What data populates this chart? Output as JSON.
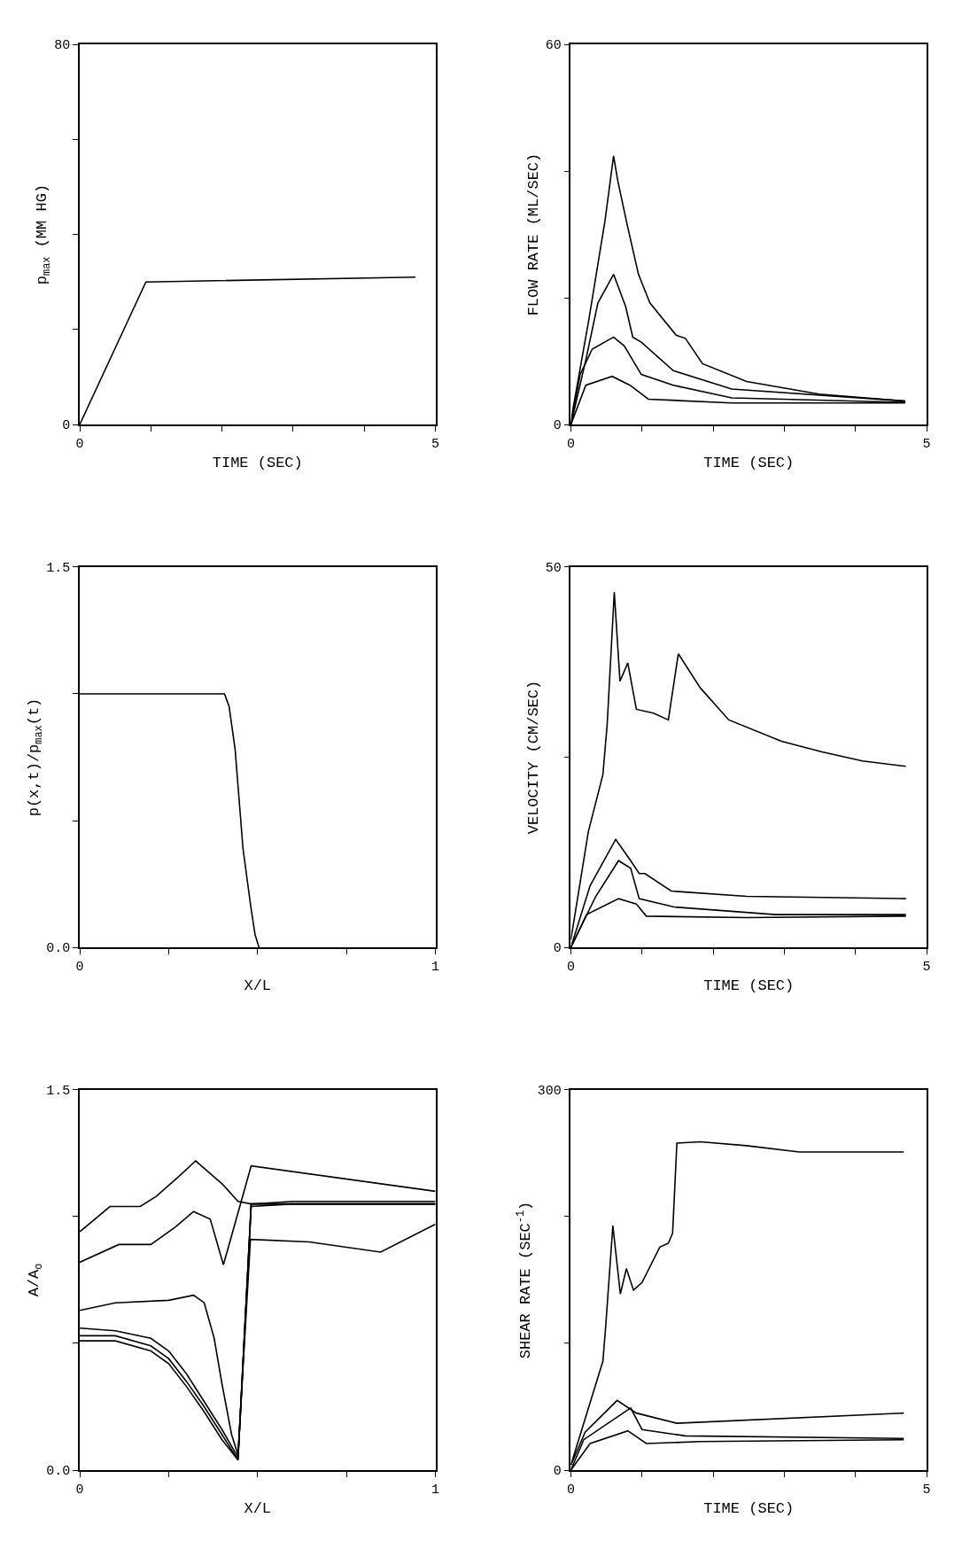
{
  "chart_data": [
    {
      "type": "line",
      "xlabel": "TIME (SEC)",
      "ylabel": "p$_{max}$ (MM HG)",
      "xlim": [
        0,
        5
      ],
      "ylim": [
        0,
        80
      ],
      "xticks": [
        0,
        {
          "value": 1,
          "label": null
        },
        {
          "value": 2,
          "label": null
        },
        {
          "value": 3,
          "label": null
        },
        {
          "value": 4,
          "label": null
        },
        5
      ],
      "yticks": [
        0,
        {
          "value": 20,
          "label": null
        },
        {
          "value": 40,
          "label": null
        },
        {
          "value": 60,
          "label": null
        },
        80
      ],
      "marker": "none",
      "line_style": "solid",
      "series": [
        {
          "color": "#000000",
          "x": [
            0,
            0.93,
            4.72
          ],
          "values": [
            0,
            30,
            31
          ]
        }
      ]
    },
    {
      "type": "line",
      "xlabel": "TIME (SEC)",
      "ylabel": "FLOW RATE (ML/SEC)",
      "xlim": [
        0,
        5
      ],
      "ylim": [
        0,
        60
      ],
      "xticks": [
        0,
        {
          "value": 1,
          "label": null
        },
        {
          "value": 2,
          "label": null
        },
        {
          "value": 3,
          "label": null
        },
        {
          "value": 4,
          "label": null
        },
        5
      ],
      "yticks": [
        0,
        {
          "value": 20,
          "label": null
        },
        {
          "value": 40,
          "label": null
        },
        60
      ],
      "marker": "none",
      "line_style": "solid",
      "series": [
        {
          "color": "#000000",
          "x": [
            0,
            0.03,
            0.25,
            0.48,
            0.6,
            0.66,
            0.79,
            0.95,
            1.11,
            1.48,
            1.61,
            1.85,
            2.47,
            3.49,
            4.7
          ],
          "values": [
            0,
            2.5,
            16.4,
            32.2,
            42.4,
            38.4,
            31.6,
            23.7,
            19.2,
            14.1,
            13.6,
            9.6,
            6.8,
            4.8,
            3.7
          ]
        },
        {
          "color": "#000000",
          "x": [
            0,
            0.21,
            0.38,
            0.6,
            0.77,
            0.87,
            0.99,
            1.44,
            2.26,
            4.7
          ],
          "values": [
            0,
            10.2,
            19.2,
            23.7,
            18.6,
            13.8,
            13.0,
            8.5,
            5.6,
            3.7
          ]
        },
        {
          "color": "#000000",
          "x": [
            0,
            0.13,
            0.3,
            0.6,
            0.75,
            0.99,
            1.44,
            2.26,
            4.7
          ],
          "values": [
            0,
            7.9,
            11.9,
            13.8,
            12.4,
            7.9,
            6.2,
            4.2,
            3.5
          ]
        },
        {
          "color": "#000000",
          "x": [
            0,
            0.21,
            0.58,
            0.83,
            1.09,
            2.26,
            4.7
          ],
          "values": [
            0,
            6.2,
            7.6,
            6.2,
            4.0,
            3.4,
            3.4
          ]
        }
      ]
    },
    {
      "type": "line",
      "xlabel": "X/L",
      "ylabel": "p(x,t)/p$_{max}$(t)",
      "xlim": [
        0,
        1
      ],
      "ylim": [
        0,
        1.5
      ],
      "xticks": [
        0,
        {
          "value": 0.25,
          "label": null
        },
        {
          "value": 0.5,
          "label": null
        },
        {
          "value": 0.75,
          "label": null
        },
        1
      ],
      "yticks": [
        {
          "value": 0,
          "label": "0.0"
        },
        {
          "value": 0.5,
          "label": null
        },
        {
          "value": 1,
          "label": null
        },
        1.5
      ],
      "marker": "none",
      "line_style": "solid",
      "series": [
        {
          "color": "#000000",
          "x": [
            0,
            0.407,
            0.42,
            0.437,
            0.459,
            0.481,
            0.493,
            0.504
          ],
          "values": [
            1.0,
            1.0,
            0.95,
            0.78,
            0.39,
            0.16,
            0.05,
            0.0
          ]
        }
      ]
    },
    {
      "type": "line",
      "xlabel": "TIME (SEC)",
      "ylabel": "VELOCITY (CM/SEC)",
      "xlim": [
        0,
        5
      ],
      "ylim": [
        0,
        50
      ],
      "xticks": [
        0,
        {
          "value": 1,
          "label": null
        },
        {
          "value": 2,
          "label": null
        },
        {
          "value": 3,
          "label": null
        },
        {
          "value": 4,
          "label": null
        },
        5
      ],
      "yticks": [
        0,
        {
          "value": 25,
          "label": null
        },
        50
      ],
      "marker": "none",
      "line_style": "solid",
      "series": [
        {
          "color": "#000000",
          "x": [
            0,
            0.245,
            0.45,
            0.51,
            0.61,
            0.69,
            0.8,
            0.92,
            1.16,
            1.37,
            1.51,
            1.82,
            2.22,
            2.96,
            3.53,
            4.1,
            4.71
          ],
          "values": [
            1,
            15.2,
            22.7,
            29.3,
            46.7,
            35,
            37.4,
            31.3,
            30.8,
            29.9,
            38.6,
            34.1,
            29.9,
            27.1,
            25.7,
            24.5,
            23.8
          ]
        },
        {
          "color": "#000000",
          "x": [
            0,
            0.27,
            0.63,
            0.84,
            0.96,
            1.04,
            1.41,
            2.47,
            4.71
          ],
          "values": [
            0,
            8.1,
            14.2,
            11.4,
            9.7,
            9.7,
            7.4,
            6.7,
            6.4
          ]
        },
        {
          "color": "#000000",
          "x": [
            0,
            0.35,
            0.67,
            0.84,
            0.96,
            1.45,
            2.88,
            4.71
          ],
          "values": [
            0,
            6.7,
            11.4,
            10.4,
            6.4,
            5.3,
            4.3,
            4.3
          ]
        },
        {
          "color": "#000000",
          "x": [
            0,
            0.22,
            0.67,
            0.92,
            1.06,
            2.47,
            4.71
          ],
          "values": [
            0,
            4.3,
            6.4,
            5.7,
            4.1,
            3.9,
            4.1
          ]
        }
      ]
    },
    {
      "type": "line",
      "xlabel": "X/L",
      "ylabel": "A/A$_{o}$",
      "xlim": [
        0,
        1
      ],
      "ylim": [
        0,
        1.5
      ],
      "xticks": [
        0,
        {
          "value": 0.25,
          "label": null
        },
        {
          "value": 0.5,
          "label": null
        },
        {
          "value": 0.75,
          "label": null
        },
        1
      ],
      "yticks": [
        {
          "value": 0,
          "label": "0.0"
        },
        {
          "value": 0.5,
          "label": null
        },
        {
          "value": 1,
          "label": null
        },
        1.5
      ],
      "marker": "none",
      "line_style": "solid",
      "series": [
        {
          "color": "#000000",
          "x": [
            0,
            0.085,
            0.17,
            0.215,
            0.28,
            0.326,
            0.4,
            0.445,
            0.482,
            1.0
          ],
          "values": [
            0.94,
            1.04,
            1.04,
            1.08,
            1.16,
            1.22,
            1.13,
            1.06,
            1.05,
            1.05
          ]
        },
        {
          "color": "#000000",
          "x": [
            0,
            0.11,
            0.2,
            0.27,
            0.32,
            0.367,
            0.404,
            0.482,
            1.0
          ],
          "values": [
            0.82,
            0.89,
            0.89,
            0.96,
            1.02,
            0.99,
            0.81,
            1.2,
            1.1
          ]
        },
        {
          "color": "#000000",
          "x": [
            0,
            0.1,
            0.25,
            0.32,
            0.35,
            0.378,
            0.4,
            0.427,
            0.445,
            0.48,
            0.645,
            0.846,
            1.0
          ],
          "values": [
            0.63,
            0.66,
            0.67,
            0.69,
            0.66,
            0.52,
            0.34,
            0.14,
            0.06,
            0.91,
            0.9,
            0.86,
            0.97
          ]
        },
        {
          "color": "#000000",
          "x": [
            0,
            0.1,
            0.2,
            0.25,
            0.3,
            0.35,
            0.4,
            0.445,
            0.482,
            0.6,
            0.8,
            1.0
          ],
          "values": [
            0.56,
            0.55,
            0.52,
            0.47,
            0.38,
            0.27,
            0.16,
            0.05,
            1.04,
            1.05,
            1.05,
            1.05
          ]
        },
        {
          "color": "#000000",
          "x": [
            0,
            0.1,
            0.2,
            0.25,
            0.3,
            0.35,
            0.4,
            0.445,
            0.482,
            0.6,
            0.8,
            1.0
          ],
          "values": [
            0.53,
            0.53,
            0.49,
            0.44,
            0.35,
            0.25,
            0.14,
            0.04,
            1.05,
            1.05,
            1.05,
            1.05
          ]
        },
        {
          "color": "#000000",
          "x": [
            0,
            0.1,
            0.2,
            0.25,
            0.3,
            0.35,
            0.4,
            0.445,
            0.482,
            0.6,
            0.8,
            1.0
          ],
          "values": [
            0.51,
            0.51,
            0.47,
            0.42,
            0.33,
            0.23,
            0.12,
            0.04,
            1.05,
            1.06,
            1.06,
            1.06
          ]
        }
      ]
    },
    {
      "type": "line",
      "xlabel": "TIME (SEC)",
      "ylabel": "SHEAR RATE (SEC$^{-1}$)",
      "xlim": [
        0,
        5
      ],
      "ylim": [
        0,
        300
      ],
      "xticks": [
        0,
        {
          "value": 1,
          "label": null
        },
        {
          "value": 2,
          "label": null
        },
        {
          "value": 3,
          "label": null
        },
        {
          "value": 4,
          "label": null
        },
        5
      ],
      "yticks": [
        0,
        {
          "value": 100,
          "label": null
        },
        {
          "value": 200,
          "label": null
        },
        300
      ],
      "marker": "none",
      "line_style": "solid",
      "series": [
        {
          "color": "#000000",
          "x": [
            0,
            0.45,
            0.49,
            0.59,
            0.695,
            0.78,
            0.88,
            1.0,
            1.25,
            1.37,
            1.43,
            1.49,
            1.82,
            2.47,
            3.21,
            4.68
          ],
          "values": [
            4,
            86,
            114,
            193,
            139,
            159,
            142,
            148,
            176,
            179,
            187,
            258,
            259,
            256,
            251,
            251
          ]
        },
        {
          "color": "#000000",
          "x": [
            0,
            0.2,
            0.65,
            0.92,
            1.49,
            4.68
          ],
          "values": [
            4,
            30,
            55,
            45,
            37,
            45
          ]
        },
        {
          "color": "#000000",
          "x": [
            0,
            0.18,
            0.84,
            1.0,
            1.61,
            4.68
          ],
          "values": [
            0,
            24,
            49,
            32,
            27,
            25
          ]
        },
        {
          "color": "#000000",
          "x": [
            0,
            0.27,
            0.8,
            1.06,
            1.82,
            4.68
          ],
          "values": [
            0,
            21,
            31,
            21,
            22.5,
            24
          ]
        }
      ]
    }
  ]
}
